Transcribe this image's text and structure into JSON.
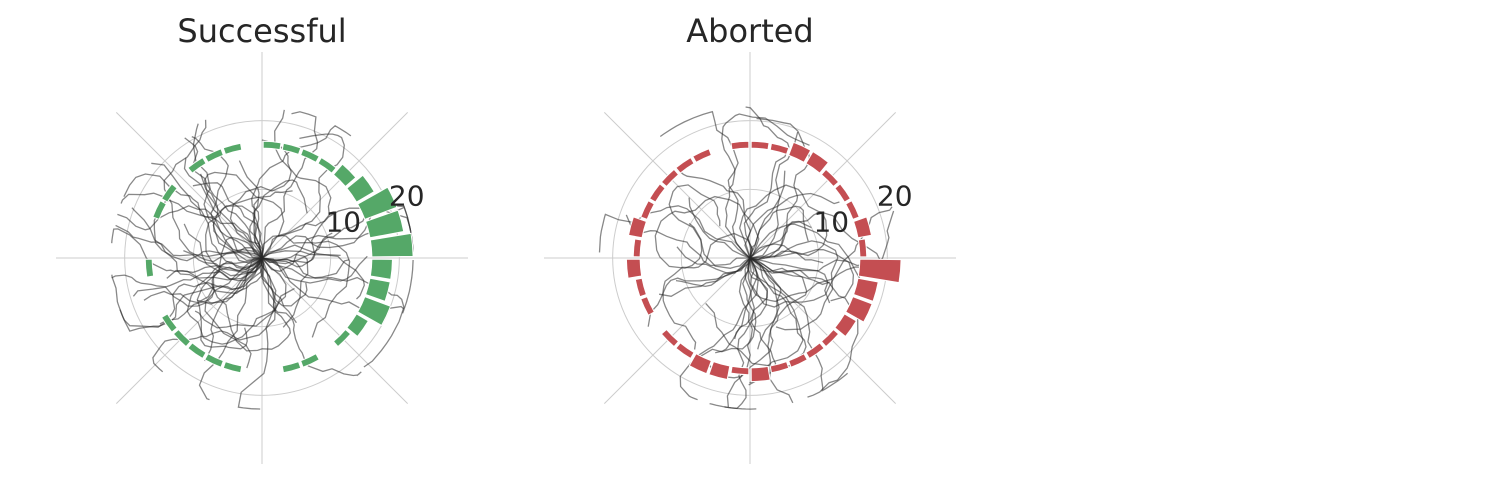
{
  "chart_data": [
    {
      "type": "polar-histogram-with-trajectories",
      "title": "Successful",
      "color": "#55a868",
      "r_ticks": [
        10,
        20
      ],
      "r_tick_labels": [
        "10",
        "20"
      ],
      "r_max": 30,
      "bars": {
        "bin_width_deg": 10,
        "base_radius": 16,
        "bin_centers_deg": [
          -175,
          -165,
          -155,
          -145,
          -135,
          -125,
          -115,
          -105,
          -95,
          -85,
          -75,
          -65,
          -55,
          -45,
          -35,
          -25,
          -15,
          -5,
          5,
          15,
          25,
          35,
          45,
          55,
          65,
          75,
          85,
          95,
          105,
          115,
          125,
          135,
          145,
          155,
          165,
          175
        ],
        "counts": [
          1,
          0,
          0,
          1,
          1,
          1,
          1,
          1,
          0,
          0,
          1,
          1,
          0,
          1,
          2,
          4,
          3,
          3,
          6,
          5,
          5,
          3,
          2,
          1,
          1,
          1,
          1,
          0,
          1,
          1,
          1,
          0,
          1,
          1,
          0,
          0
        ]
      },
      "trajectories": {
        "count": 60,
        "max_radius": 22,
        "color": "#262626"
      }
    },
    {
      "type": "polar-histogram-with-trajectories",
      "title": "Aborted",
      "color": "#c44e52",
      "r_ticks": [
        10,
        20
      ],
      "r_tick_labels": [
        "10",
        "20"
      ],
      "r_max": 30,
      "bars": {
        "bin_width_deg": 10,
        "base_radius": 16,
        "bin_centers_deg": [
          -175,
          -165,
          -155,
          -145,
          -135,
          -125,
          -115,
          -105,
          -95,
          -85,
          -75,
          -65,
          -55,
          -45,
          -35,
          -25,
          -15,
          -5,
          5,
          15,
          25,
          35,
          45,
          55,
          65,
          75,
          85,
          95,
          105,
          115,
          125,
          135,
          145,
          155,
          165,
          175
        ],
        "counts": [
          2,
          1,
          1,
          0,
          1,
          1,
          2,
          2,
          1,
          2,
          1,
          1,
          1,
          1,
          2,
          3,
          3,
          6,
          1,
          2,
          1,
          1,
          1,
          2,
          2,
          1,
          1,
          1,
          0,
          1,
          1,
          1,
          1,
          1,
          2,
          1
        ]
      },
      "trajectories": {
        "count": 45,
        "max_radius": 22,
        "color": "#262626"
      }
    }
  ]
}
